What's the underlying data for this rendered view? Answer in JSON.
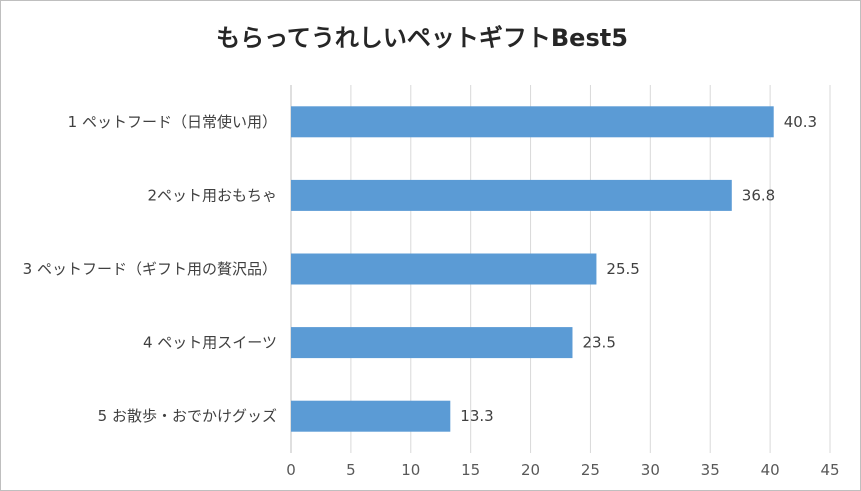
{
  "chart_data": {
    "type": "bar",
    "orientation": "horizontal",
    "title": "もらってうれしいペットギフトBest5",
    "categories": [
      "1 ペットフード（日常使い用）",
      "2ペット用おもちゃ",
      "3 ペットフード（ギフト用の贅沢品）",
      "4 ペット用スイーツ",
      "5 お散歩・おでかけグッズ"
    ],
    "values": [
      40.3,
      36.8,
      25.5,
      23.5,
      13.3
    ],
    "data_labels": [
      "40.3",
      "36.8",
      "25.5",
      "23.5",
      "13.3"
    ],
    "xlim": [
      0,
      45
    ],
    "xticks": [
      0,
      5,
      10,
      15,
      20,
      25,
      30,
      35,
      40,
      45
    ],
    "grid": "vertical",
    "legend": "none",
    "bar_color": "#5b9bd5"
  }
}
